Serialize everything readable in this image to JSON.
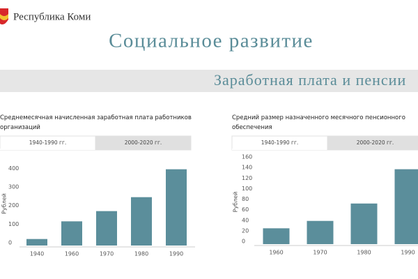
{
  "header": {
    "brand": "Республика Коми",
    "title": "Социальное развитие",
    "section": "Заработная плата и пенсии"
  },
  "chart_data": [
    {
      "type": "bar",
      "title": "Среднемесячная начисленная заработная плата работников организаций",
      "tabs": [
        "1940-1990 гг.",
        "2000-2020 гг."
      ],
      "y_label": "Рублей",
      "categories": [
        "1940",
        "1960",
        "1970",
        "1980",
        "1990"
      ],
      "values": [
        35,
        130,
        185,
        260,
        410
      ],
      "color": "#5b8e9b",
      "ylim": [
        0,
        450
      ],
      "yticks": [
        0,
        100,
        200,
        300,
        400
      ],
      "grid": false
    },
    {
      "type": "bar",
      "title": "Средний размер назначенного месячного пенсионного обеспечения",
      "tabs": [
        "1940-1990 гг.",
        "2000-2020 гг."
      ],
      "y_label": "Рублей",
      "categories": [
        "1960",
        "1970",
        "1980",
        "1990"
      ],
      "values": [
        30,
        44,
        77,
        142
      ],
      "color": "#5b8e9b",
      "ylim": [
        0,
        160
      ],
      "yticks": [
        0,
        20,
        40,
        60,
        80,
        100,
        120,
        140,
        160
      ],
      "grid": false
    }
  ]
}
